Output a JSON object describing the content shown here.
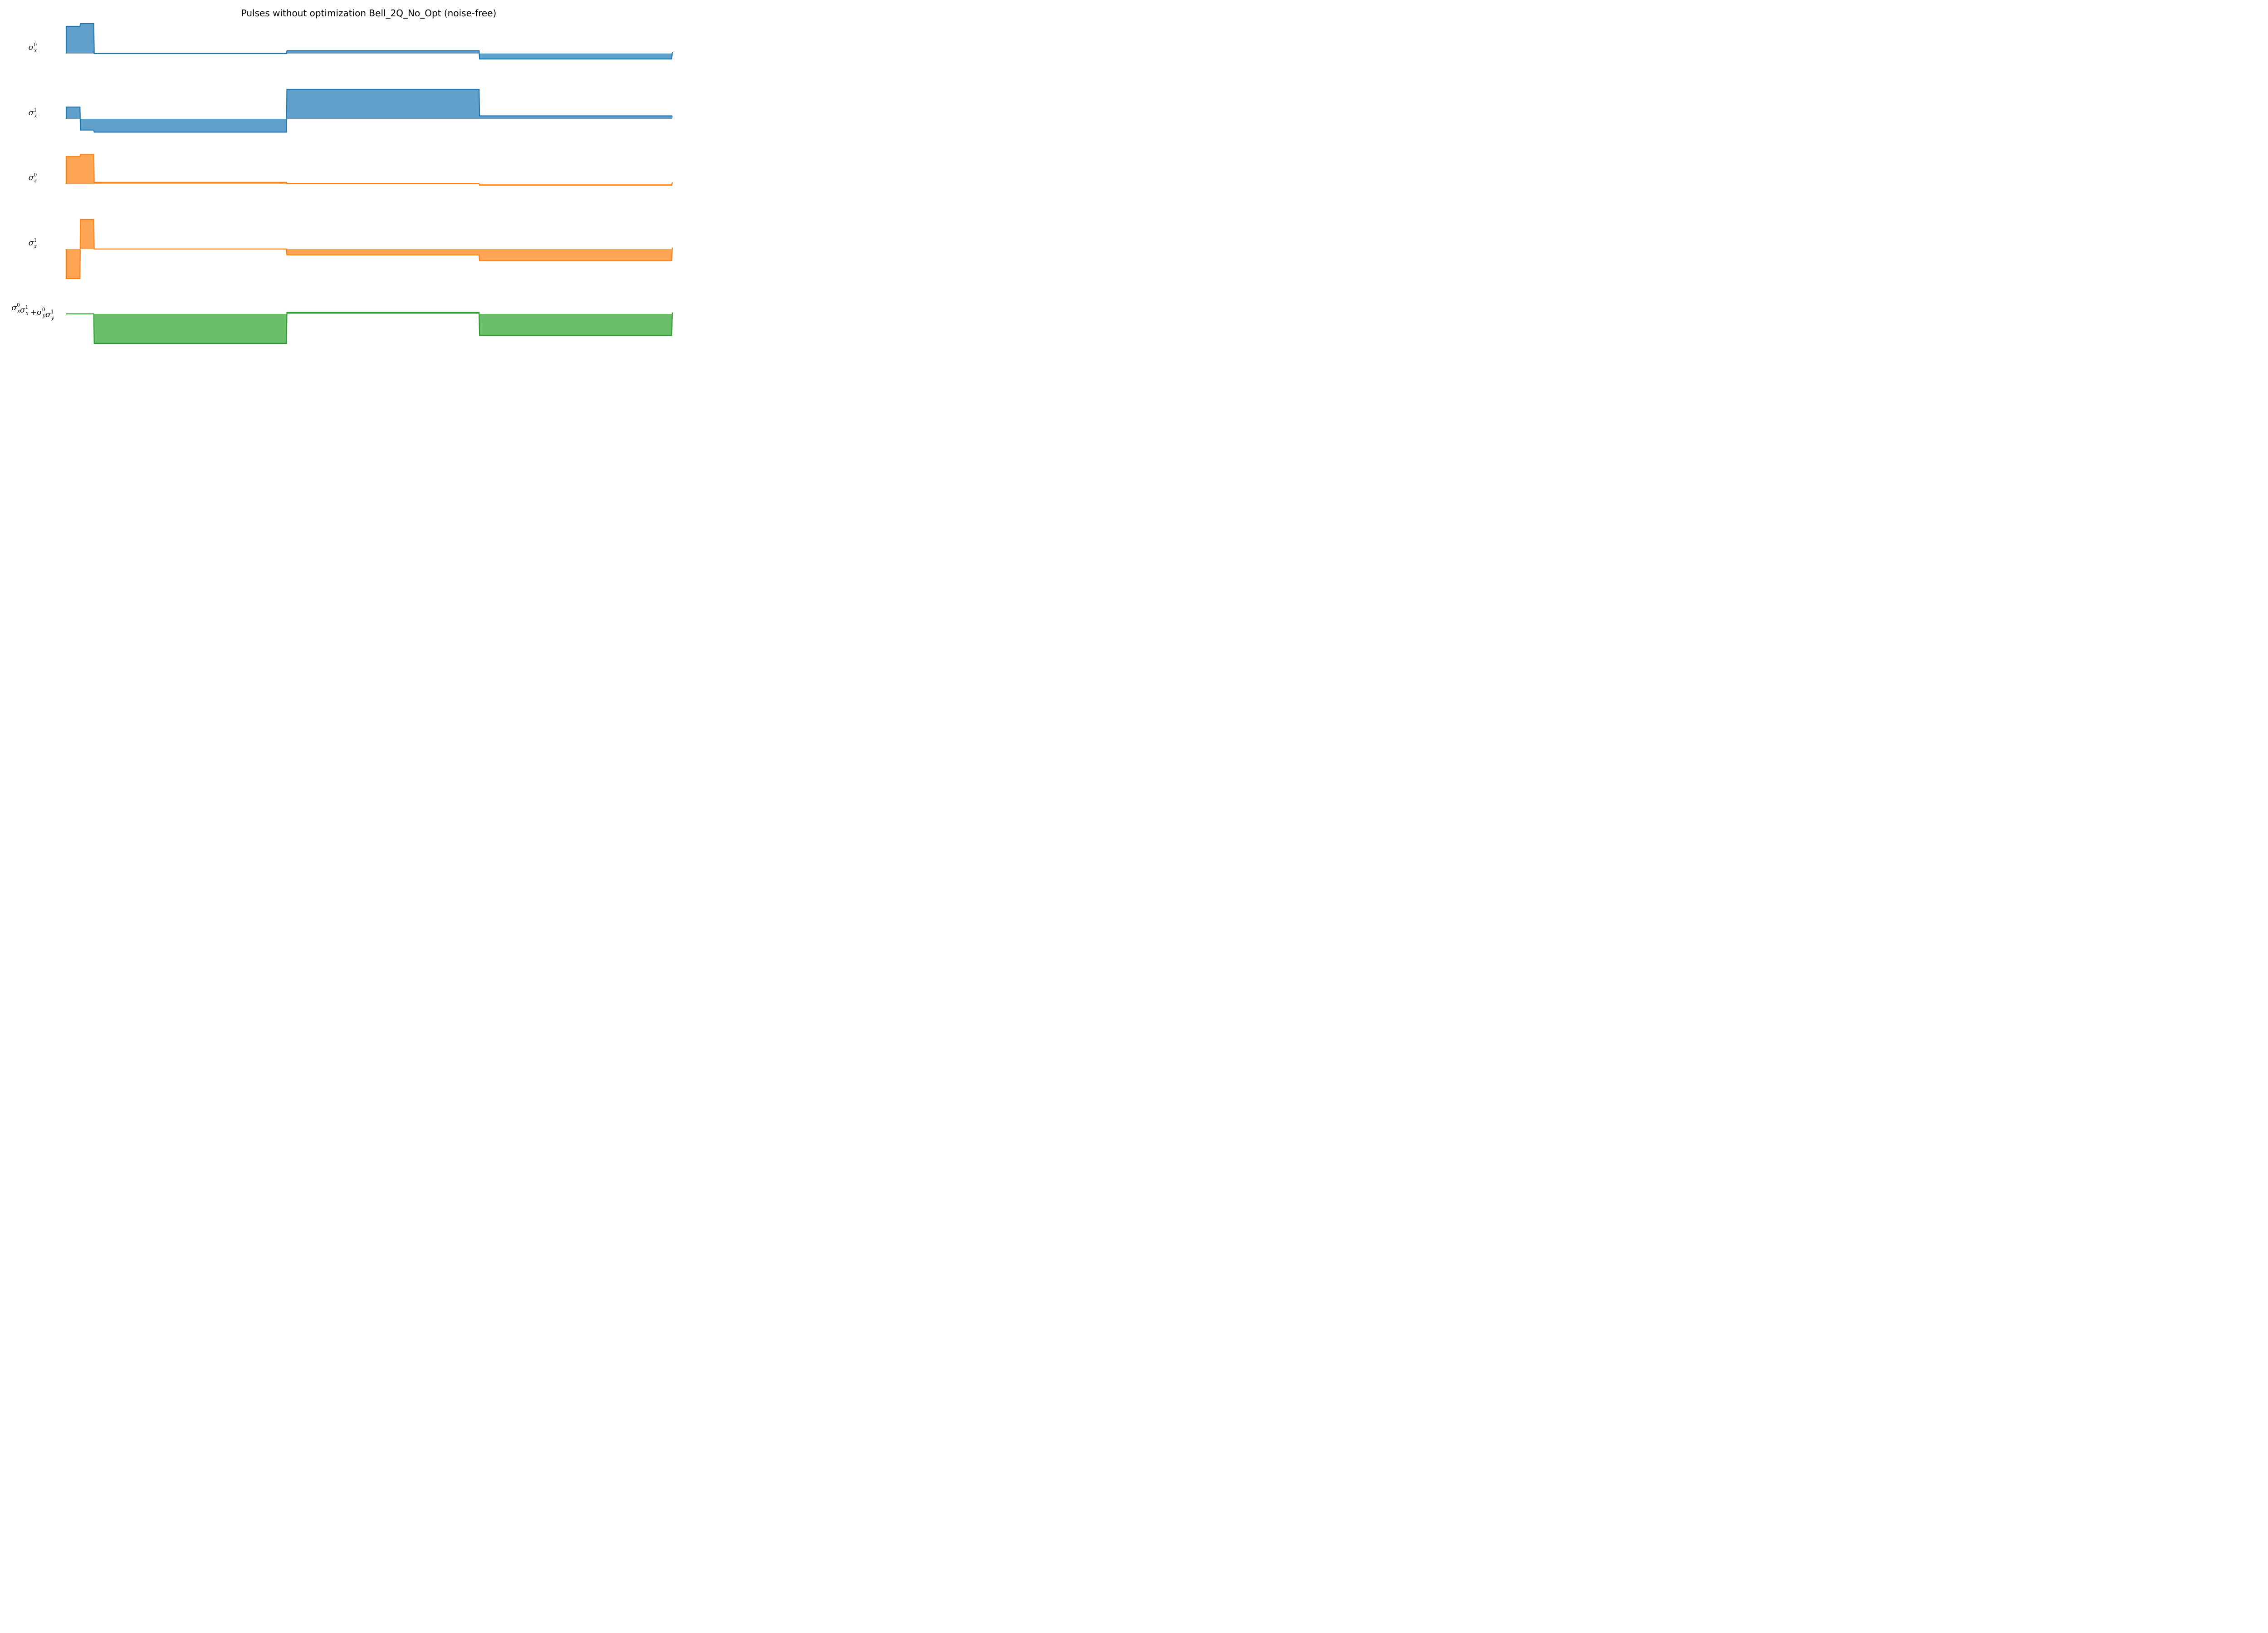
{
  "chart_data": {
    "type": "area",
    "title": "Pulses without optimization Bell_2Q_No_Opt (noise-free)",
    "x_axis": "time (not shown)",
    "axes_visible": false,
    "grid": false,
    "legend": "none",
    "series": [
      {
        "label_parts": [
          {
            "base": "σ",
            "sup": "0",
            "sub": "x"
          }
        ],
        "color": "#1f77b4",
        "fill": "#62a0cc",
        "points": [
          [
            0,
            1.0
          ],
          [
            1,
            1.1
          ],
          [
            2,
            0.0
          ],
          [
            16,
            0.1
          ],
          [
            30,
            -0.2
          ],
          [
            44,
            0.0
          ]
        ]
      },
      {
        "label_parts": [
          {
            "base": "σ",
            "sup": "1",
            "sub": "x"
          }
        ],
        "color": "#1f77b4",
        "fill": "#62a0cc",
        "points": [
          [
            0,
            0.4
          ],
          [
            1,
            -0.38
          ],
          [
            2,
            -0.45
          ],
          [
            16,
            1.0
          ],
          [
            30,
            0.1
          ],
          [
            44,
            0.0
          ]
        ]
      },
      {
        "label_parts": [
          {
            "base": "σ",
            "sup": "0",
            "sub": "z"
          }
        ],
        "color": "#ff7f0e",
        "fill": "#ffa556",
        "points": [
          [
            0,
            0.92
          ],
          [
            1,
            1.0
          ],
          [
            2,
            0.05
          ],
          [
            16,
            0.0
          ],
          [
            30,
            -0.05
          ],
          [
            44,
            0.0
          ]
        ]
      },
      {
        "label_parts": [
          {
            "base": "σ",
            "sup": "1",
            "sub": "z"
          }
        ],
        "color": "#ff7f0e",
        "fill": "#ffa556",
        "points": [
          [
            0,
            -1.0
          ],
          [
            1,
            1.0
          ],
          [
            2,
            0.0
          ],
          [
            16,
            -0.2
          ],
          [
            30,
            -0.4
          ],
          [
            44,
            0.0
          ]
        ]
      },
      {
        "label_parts": [
          {
            "base": "σ",
            "sup": "0",
            "sub": "x"
          },
          {
            "base": "σ",
            "sup": "1",
            "sub": "x"
          },
          {
            "op": "+"
          },
          {
            "base": "σ",
            "sup": "0",
            "sub": "y"
          },
          {
            "base": "σ",
            "sup": "1",
            "sub": "y"
          }
        ],
        "color": "#2ca02c",
        "fill": "#6bbe6a",
        "points": [
          [
            0,
            0.0
          ],
          [
            2,
            -1.0
          ],
          [
            16,
            0.05
          ],
          [
            30,
            -0.73
          ],
          [
            44,
            0.0
          ]
        ]
      }
    ]
  }
}
